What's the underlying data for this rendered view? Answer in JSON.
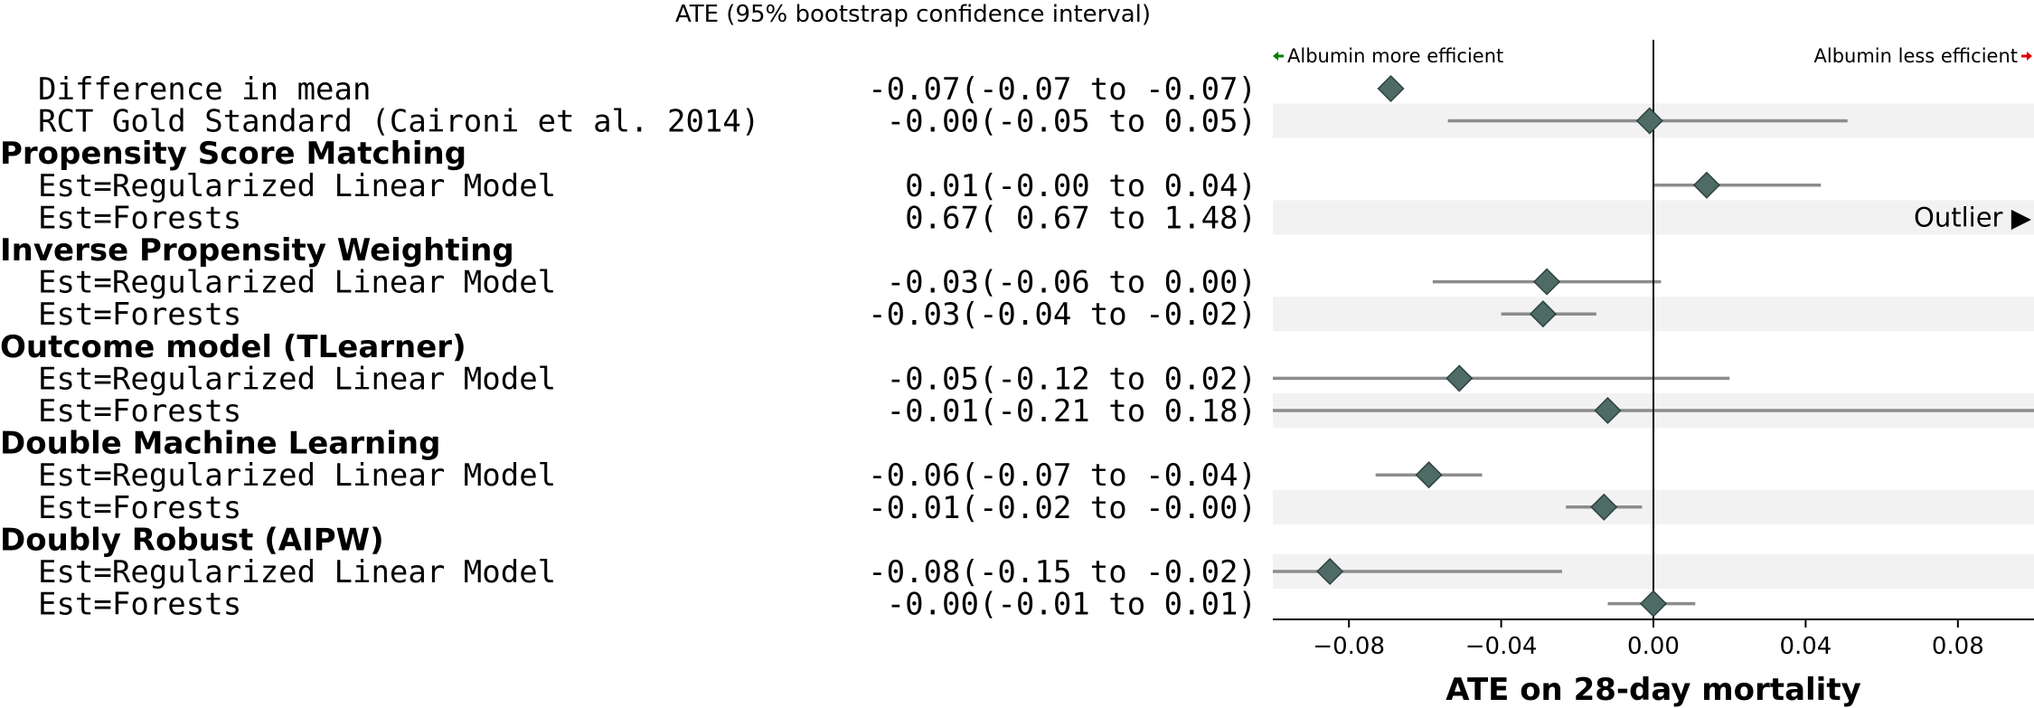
{
  "chart_data": {
    "type": "forest",
    "header": "ATE (95% bootstrap confidence interval)",
    "xlabel": "ATE on 28-day mortality",
    "xlim": [
      -0.1,
      0.1
    ],
    "xticks": [
      -0.08,
      -0.04,
      0.0,
      0.04,
      0.08
    ],
    "xtick_labels": [
      "−0.08",
      "−0.04",
      "0.00",
      "0.04",
      "0.08"
    ],
    "reference_line": 0,
    "left_direction": {
      "text": "Albumin more efficient",
      "color": "#008000"
    },
    "right_direction": {
      "text": "Albumin less efficient",
      "color": "#e00000"
    },
    "outlier_label": "Outlier ▶",
    "colors": {
      "marker": "#4e6b66",
      "marker_edge": "#2f4340",
      "ci_line": "#8c8c8c",
      "band": "#f2f2f2",
      "axis": "#000000"
    },
    "rows": [
      {
        "kind": "estimate",
        "label": "Difference in mean",
        "value_text": "-0.07(-0.07 to -0.07)",
        "est": -0.069,
        "lo": -0.069,
        "hi": -0.069,
        "band": false
      },
      {
        "kind": "estimate",
        "label": "RCT Gold Standard (Caironi et al. 2014)",
        "value_text": "-0.00(-0.05 to  0.05)",
        "est": -0.001,
        "lo": -0.054,
        "hi": 0.051,
        "band": true
      },
      {
        "kind": "group",
        "label": "Propensity Score Matching"
      },
      {
        "kind": "estimate",
        "label": "Est=Regularized Linear Model",
        "value_text": " 0.01(-0.00 to  0.04)",
        "est": 0.014,
        "lo": 0.0,
        "hi": 0.044,
        "band": false
      },
      {
        "kind": "estimate",
        "label": "Est=Forests",
        "value_text": " 0.67( 0.67 to  1.48)",
        "est": 0.67,
        "lo": 0.67,
        "hi": 1.48,
        "band": true,
        "outlier": true
      },
      {
        "kind": "group",
        "label": "Inverse Propensity Weighting"
      },
      {
        "kind": "estimate",
        "label": "Est=Regularized Linear Model",
        "value_text": "-0.03(-0.06 to  0.00)",
        "est": -0.028,
        "lo": -0.058,
        "hi": 0.002,
        "band": false
      },
      {
        "kind": "estimate",
        "label": "Est=Forests",
        "value_text": "-0.03(-0.04 to -0.02)",
        "est": -0.029,
        "lo": -0.04,
        "hi": -0.015,
        "band": true
      },
      {
        "kind": "group",
        "label": "Outcome model (TLearner)"
      },
      {
        "kind": "estimate",
        "label": "Est=Regularized Linear Model",
        "value_text": "-0.05(-0.12 to  0.02)",
        "est": -0.051,
        "lo": -0.12,
        "hi": 0.02,
        "band": false
      },
      {
        "kind": "estimate",
        "label": "Est=Forests",
        "value_text": "-0.01(-0.21 to  0.18)",
        "est": -0.012,
        "lo": -0.21,
        "hi": 0.18,
        "band": true
      },
      {
        "kind": "group",
        "label": "Double Machine Learning"
      },
      {
        "kind": "estimate",
        "label": "Est=Regularized Linear Model",
        "value_text": "-0.06(-0.07 to -0.04)",
        "est": -0.059,
        "lo": -0.073,
        "hi": -0.045,
        "band": false
      },
      {
        "kind": "estimate",
        "label": "Est=Forests",
        "value_text": "-0.01(-0.02 to -0.00)",
        "est": -0.013,
        "lo": -0.023,
        "hi": -0.003,
        "band": true
      },
      {
        "kind": "group",
        "label": "Doubly Robust (AIPW)"
      },
      {
        "kind": "estimate",
        "label": "Est=Regularized Linear Model",
        "value_text": "-0.08(-0.15 to -0.02)",
        "est": -0.085,
        "lo": -0.15,
        "hi": -0.024,
        "band": true
      },
      {
        "kind": "estimate",
        "label": "Est=Forests",
        "value_text": "-0.00(-0.01 to  0.01)",
        "est": 0.0,
        "lo": -0.012,
        "hi": 0.011,
        "band": false
      }
    ]
  }
}
